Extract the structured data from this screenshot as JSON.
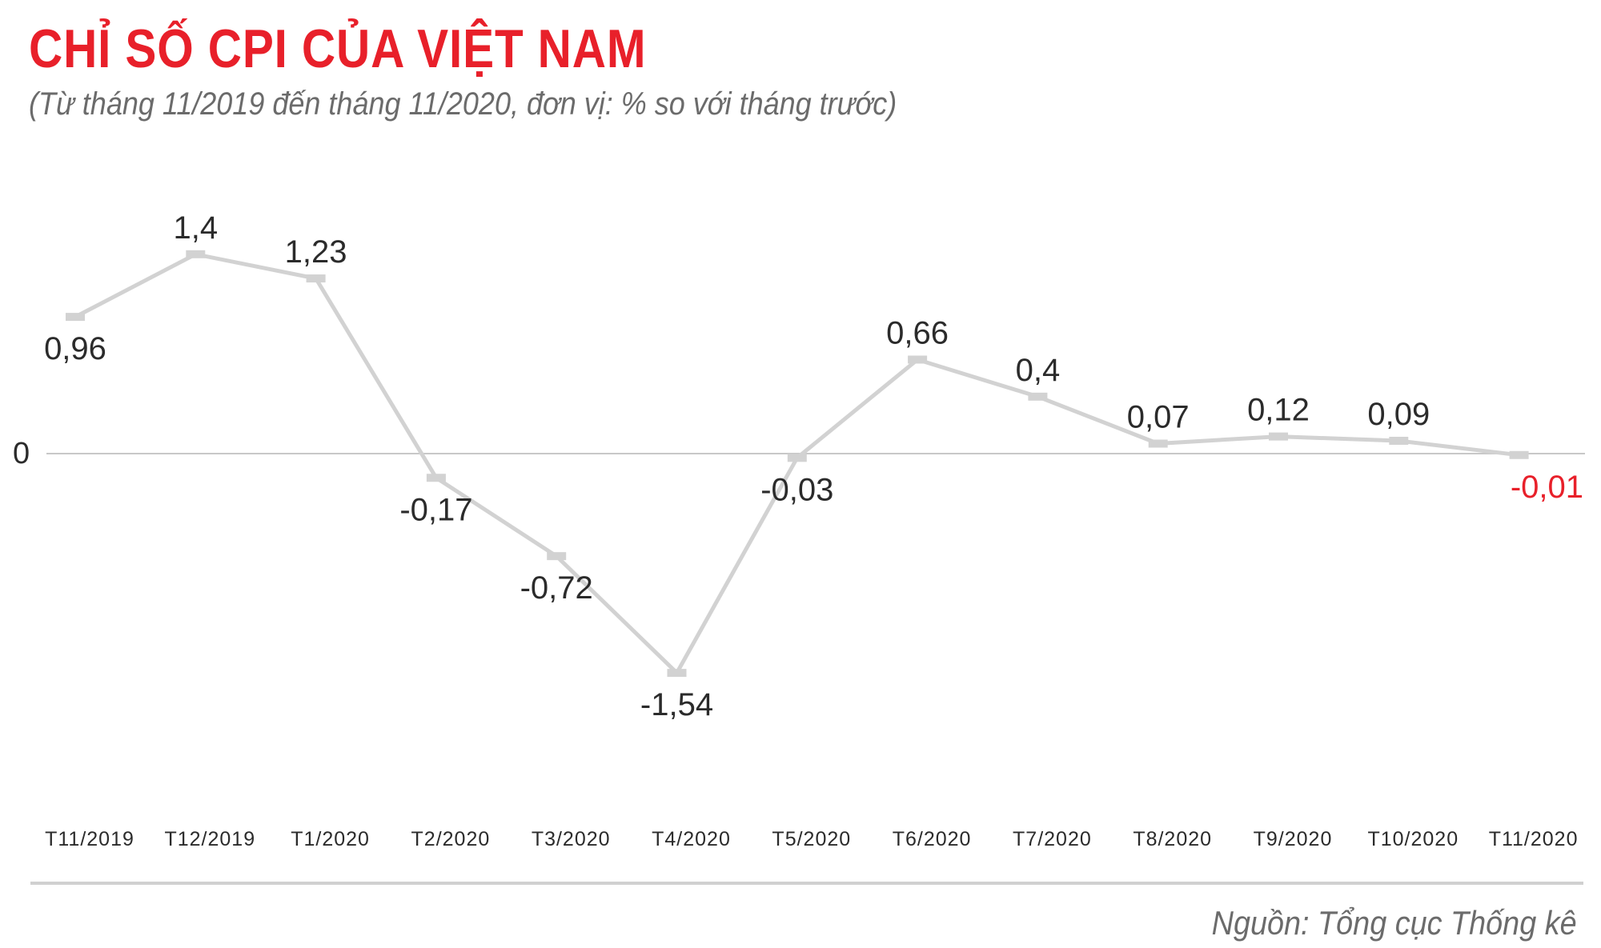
{
  "title": "CHỈ SỐ CPI CỦA VIỆT NAM",
  "subtitle": "(Từ tháng 11/2019 đến tháng 11/2020, đơn vị: % so với tháng trước)",
  "source": "Nguồn: Tổng cục Thống kê",
  "colors": {
    "title": "#e8202a",
    "line": "#d2d2d2",
    "label": "#2b2b2b",
    "negative_highlight": "#e8202a",
    "axis": "#c8c8c8"
  },
  "chart_data": {
    "type": "line",
    "title": "CHỈ SỐ CPI CỦA VIỆT NAM",
    "xlabel": "",
    "ylabel": "",
    "zero_label": "0",
    "categories": [
      "T11/2019",
      "T12/2019",
      "T1/2020",
      "T2/2020",
      "T3/2020",
      "T4/2020",
      "T5/2020",
      "T6/2020",
      "T7/2020",
      "T8/2020",
      "T9/2020",
      "T10/2020",
      "T11/2020"
    ],
    "values": [
      0.96,
      1.4,
      1.23,
      -0.17,
      -0.72,
      -1.54,
      -0.03,
      0.66,
      0.4,
      0.07,
      0.12,
      0.09,
      -0.01
    ],
    "value_labels": [
      "0,96",
      "1,4",
      "1,23",
      "-0,17",
      "-0,72",
      "-1,54",
      "-0,03",
      "0,66",
      "0,4",
      "0,07",
      "0,12",
      "0,09",
      "-0,01"
    ],
    "label_positions": [
      "below",
      "above",
      "above",
      "below",
      "below",
      "below",
      "below",
      "above",
      "above",
      "above",
      "above",
      "above",
      "below"
    ],
    "highlight_index": 12,
    "ylim": [
      -1.54,
      1.4
    ],
    "grid": false,
    "legend": "none"
  }
}
